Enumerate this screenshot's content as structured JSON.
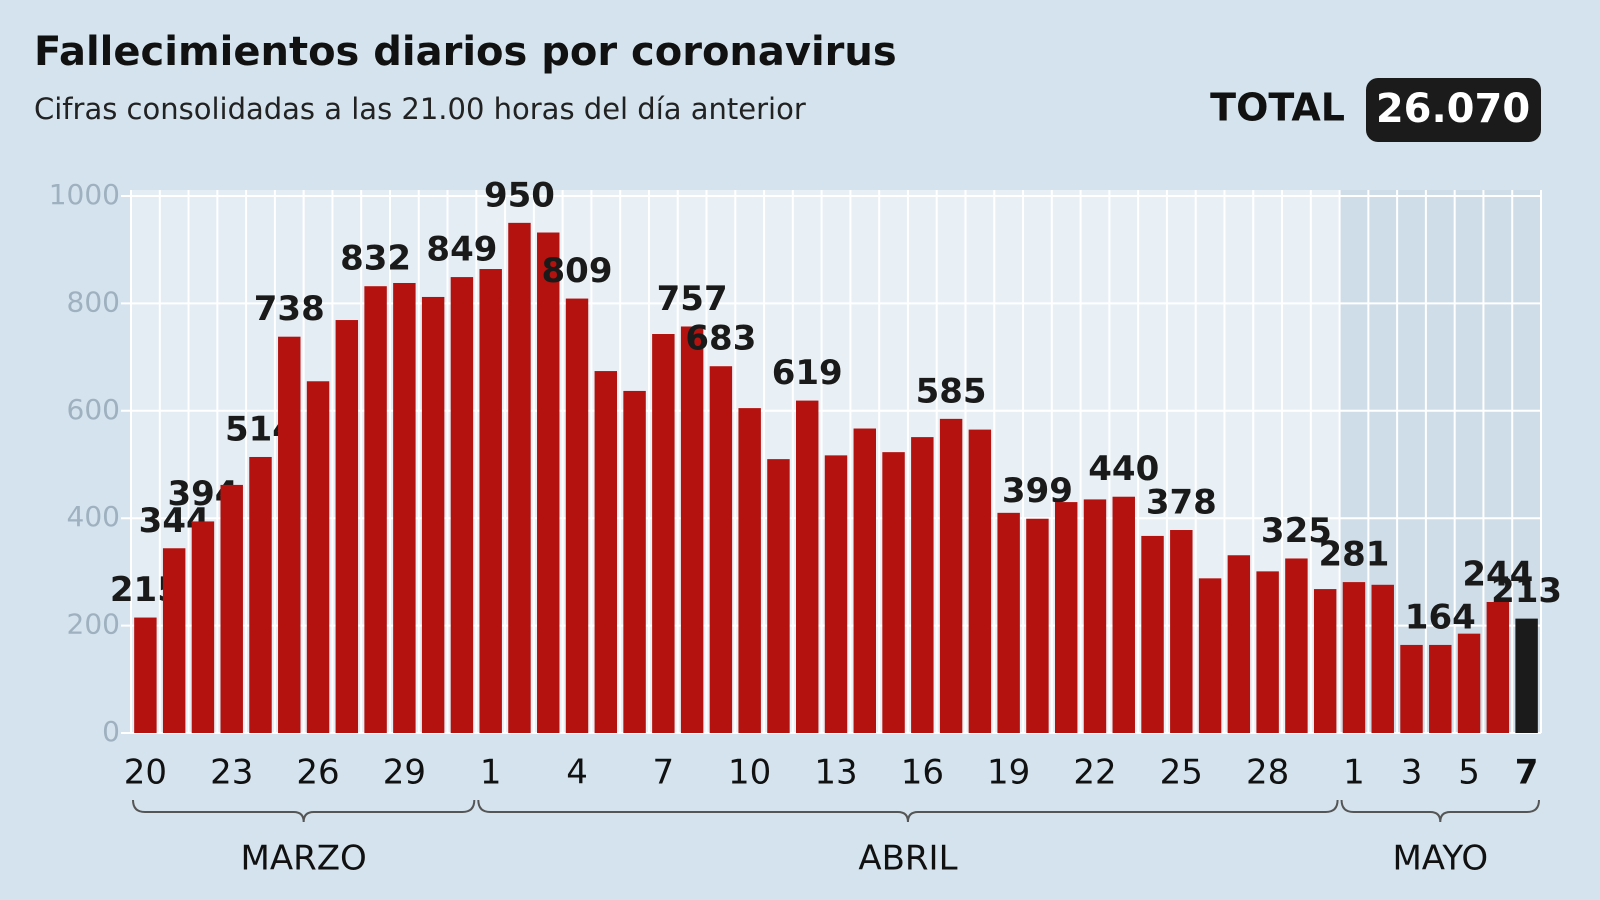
{
  "chart_data": {
    "type": "bar",
    "title": "Fallecimientos diarios por coronavirus",
    "subtitle": "Cifras consolidadas a las 21.00 horas del día anterior",
    "total_label": "TOTAL",
    "total": "26.070",
    "categories": [
      "20",
      null,
      null,
      "23",
      null,
      null,
      "26",
      null,
      null,
      "29",
      null,
      null,
      "1",
      null,
      null,
      "4",
      null,
      null,
      "7",
      null,
      null,
      "10",
      null,
      null,
      "13",
      null,
      null,
      "16",
      null,
      null,
      "19",
      null,
      null,
      "22",
      null,
      null,
      "25",
      null,
      null,
      "28",
      null,
      null,
      "1",
      null,
      "3",
      null,
      "5",
      null,
      "7"
    ],
    "values": [
      215,
      344,
      394,
      462,
      514,
      738,
      655,
      769,
      832,
      838,
      812,
      849,
      864,
      950,
      932,
      809,
      674,
      637,
      743,
      757,
      683,
      605,
      510,
      619,
      517,
      567,
      523,
      551,
      585,
      565,
      410,
      399,
      430,
      435,
      440,
      367,
      378,
      288,
      331,
      301,
      325,
      268,
      281,
      276,
      164,
      164,
      185,
      244,
      213
    ],
    "value_labels": [
      "215",
      "344",
      "394",
      null,
      "514",
      "738",
      null,
      null,
      "832",
      null,
      null,
      "849",
      null,
      "950",
      null,
      "809",
      null,
      null,
      null,
      "757",
      "683",
      null,
      null,
      "619",
      null,
      null,
      null,
      null,
      "585",
      null,
      null,
      "399",
      null,
      null,
      "440",
      null,
      "378",
      null,
      null,
      null,
      "325",
      null,
      "281",
      null,
      null,
      "164",
      null,
      "244",
      "213"
    ],
    "groups": [
      {
        "name": "MARZO",
        "count": 12
      },
      {
        "name": "ABRIL",
        "count": 30
      },
      {
        "name": "MAYO",
        "count": 7
      }
    ],
    "color": "#b3120f",
    "last_color": "#1b1b1b",
    "ylim": [
      0,
      1000
    ],
    "yticks": [
      0,
      200,
      400,
      600,
      800,
      1000
    ],
    "grid": true
  }
}
